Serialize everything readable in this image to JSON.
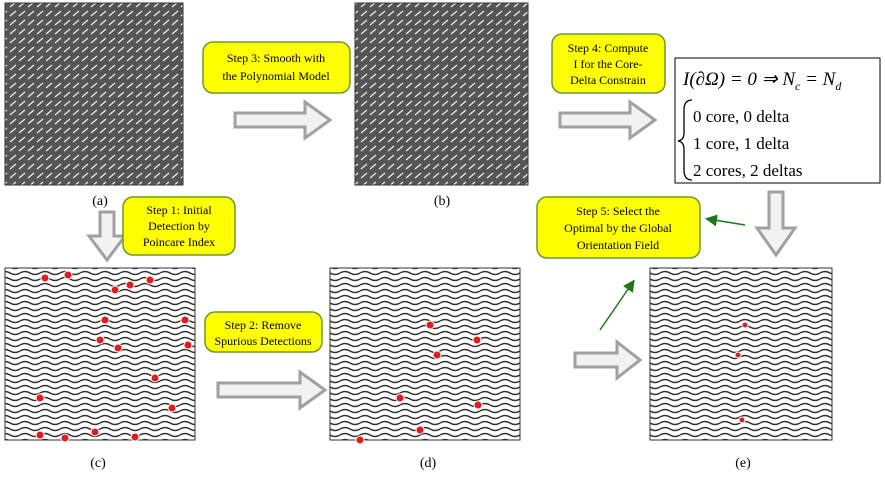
{
  "panel_labels": [
    "(a)",
    "(b)",
    "(c)",
    "(d)",
    "(e)"
  ],
  "steps": [
    {
      "lines": [
        "Step 1: Initial",
        "Detection by",
        "Poincare Index"
      ]
    },
    {
      "lines": [
        "Step 2: Remove",
        "Spurious Detections"
      ]
    },
    {
      "lines": [
        "Step 3: Smooth with",
        "the Polynomial Model"
      ]
    },
    {
      "lines": [
        "Step 4: Compute",
        "I for the Core-",
        "Delta Constrain"
      ]
    },
    {
      "lines": [
        "Step 5: Select the",
        "Optimal by  the Global",
        "Orientation Field"
      ]
    }
  ],
  "formula": {
    "head": [
      "I(∂Ω) = 0 ⇒ N",
      "c",
      " = N",
      "d"
    ],
    "cases": [
      "0 core, 0 delta",
      "1 core, 1 delta",
      "2 cores, 2 deltas"
    ]
  }
}
